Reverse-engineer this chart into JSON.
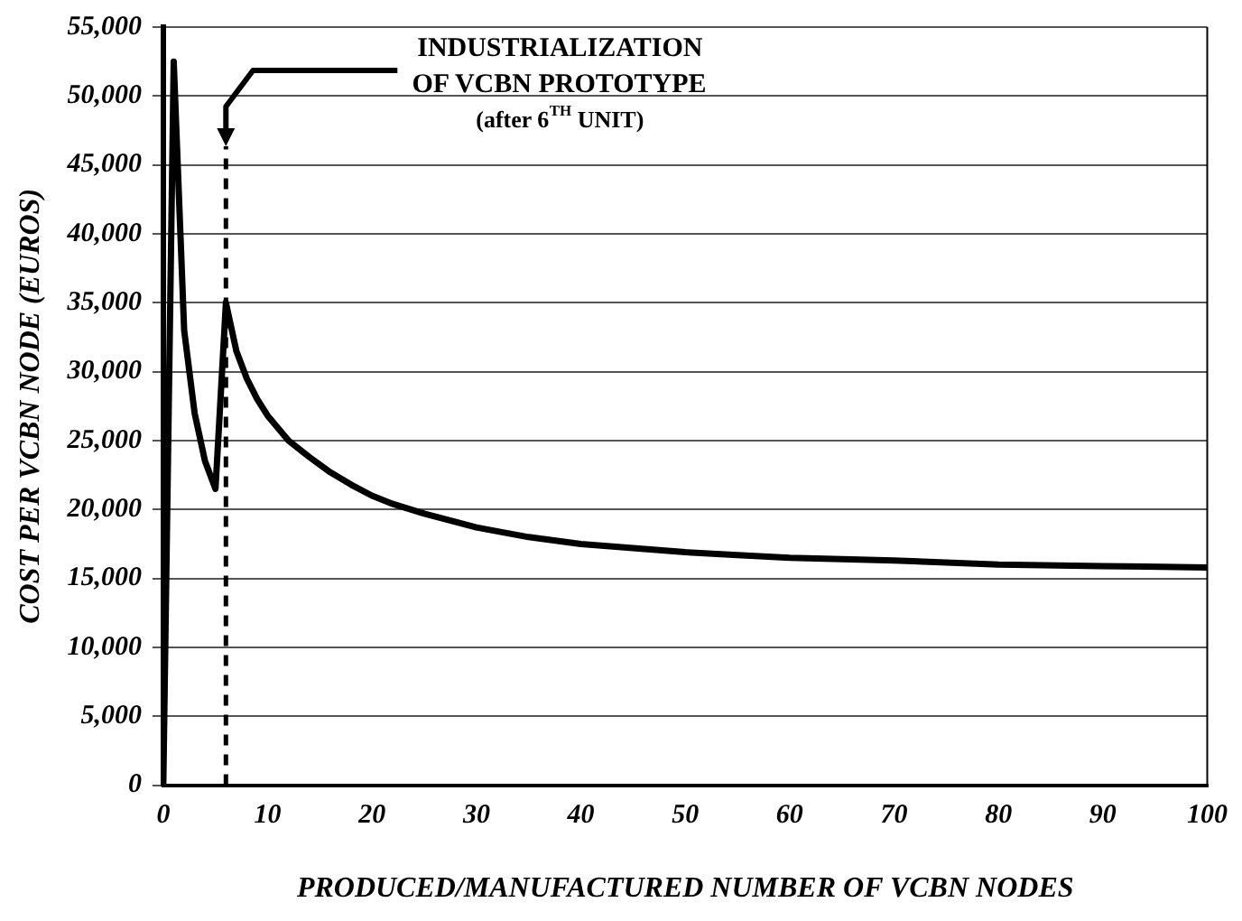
{
  "chart_data": {
    "type": "line",
    "xlabel": "PRODUCED/MANUFACTURED NUMBER OF VCBN NODES",
    "ylabel": "COST PER VCBN NODE (EUROS)",
    "x": [
      0,
      1,
      2,
      3,
      4,
      5,
      6,
      7,
      8,
      9,
      10,
      12,
      14,
      16,
      18,
      20,
      22,
      25,
      30,
      35,
      40,
      45,
      50,
      55,
      60,
      70,
      80,
      90,
      100
    ],
    "series": [
      {
        "color": "#000000",
        "values": [
          0,
          52500,
          33000,
          27000,
          23500,
          21500,
          35000,
          31500,
          29500,
          28000,
          26800,
          25000,
          23800,
          22700,
          21800,
          21000,
          20400,
          19700,
          18700,
          18000,
          17500,
          17200,
          16900,
          16700,
          16500,
          16300,
          16000,
          15900,
          15800
        ]
      }
    ],
    "xlim": [
      0,
      100
    ],
    "xticks": [
      0,
      10,
      20,
      30,
      40,
      50,
      60,
      70,
      80,
      90,
      100
    ],
    "ylim": [
      0,
      55000
    ],
    "yticks": [
      0,
      {
        "value": 5000,
        "label": "5,000"
      },
      {
        "value": 10000,
        "label": "10,000"
      },
      {
        "value": 15000,
        "label": "15,000"
      },
      {
        "value": 20000,
        "label": "20,000"
      },
      {
        "value": 25000,
        "label": "25,000"
      },
      {
        "value": 30000,
        "label": "30,000"
      },
      {
        "value": 35000,
        "label": "35,000"
      },
      {
        "value": 40000,
        "label": "40,000"
      },
      {
        "value": 45000,
        "label": "45,000"
      },
      {
        "value": 50000,
        "label": "50,000"
      },
      {
        "value": 55000,
        "label": "55,000"
      }
    ],
    "grid": "y",
    "legend": false,
    "marker": "none",
    "line_style": "solid",
    "ref_lines": [
      {
        "axis": "x",
        "value": 6,
        "line_style": "dashed",
        "label": "INDUSTRIALIZATION\nOF VCBN PROTOTYPE\n(after 6$^{TH}$ UNIT)"
      }
    ]
  }
}
